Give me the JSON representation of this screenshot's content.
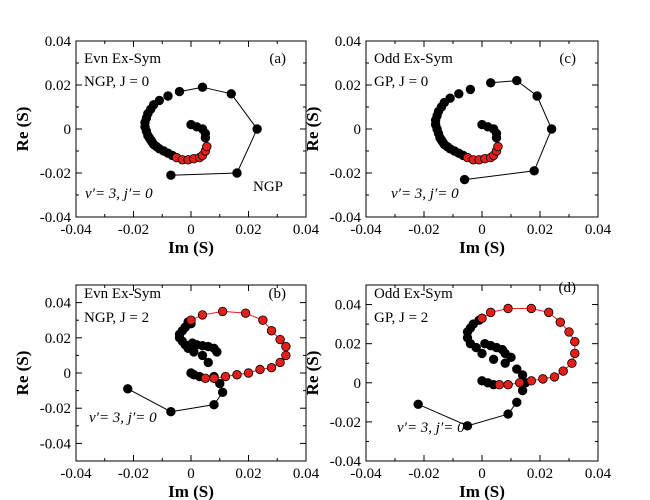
{
  "chart_data": [
    {
      "id": "a",
      "type": "scatter",
      "xlabel": "Im (S)",
      "ylabel": "Re (S)",
      "xlim": [
        -0.04,
        0.04
      ],
      "ylim": [
        -0.04,
        0.04
      ],
      "xticks": [
        -0.04,
        -0.02,
        0,
        0.02,
        0.04
      ],
      "yticks": [
        -0.04,
        -0.02,
        0,
        0.02,
        0.04
      ],
      "xtick_labels": [
        "-0.04",
        "-0.02",
        "0",
        "0.02",
        "0.04"
      ],
      "ytick_labels": [
        "-0.04",
        "-0.02",
        "0",
        "0.02",
        "0.04"
      ],
      "annotations": {
        "line1": "Evn Ex-Sym",
        "line2": "NGP, J = 0",
        "panel_label": "(a)",
        "extra": "NGP",
        "quantum": "v′= 3, j′= 0"
      },
      "series": [
        {
          "name": "black",
          "color": "#000000",
          "points": [
            [
              -0.007,
              -0.021
            ],
            [
              0.016,
              -0.02
            ],
            [
              0.023,
              0.0
            ],
            [
              0.014,
              0.016
            ],
            [
              0.004,
              0.019
            ],
            [
              -0.004,
              0.017
            ],
            [
              -0.008,
              0.015
            ],
            [
              -0.011,
              0.013
            ],
            [
              -0.013,
              0.011
            ],
            [
              -0.014,
              0.009
            ],
            [
              -0.015,
              0.007
            ],
            [
              -0.0155,
              0.005
            ],
            [
              -0.016,
              0.003
            ],
            [
              -0.016,
              0.001
            ],
            [
              -0.0155,
              -0.001
            ],
            [
              -0.015,
              -0.003
            ],
            [
              -0.0145,
              -0.004
            ],
            [
              -0.014,
              -0.005
            ],
            [
              -0.0135,
              -0.006
            ],
            [
              -0.013,
              -0.007
            ],
            [
              -0.012,
              -0.008
            ],
            [
              -0.011,
              -0.009
            ],
            [
              -0.0095,
              -0.01
            ],
            [
              -0.008,
              -0.011
            ],
            [
              -0.0065,
              -0.012
            ],
            [
              0.0,
              0.002
            ],
            [
              0.002,
              0.001
            ],
            [
              0.004,
              0.0
            ],
            [
              0.005,
              -0.002
            ],
            [
              0.005,
              -0.004
            ]
          ]
        },
        {
          "name": "red",
          "color": "#e0211b",
          "points": [
            [
              -0.005,
              -0.013
            ],
            [
              -0.003,
              -0.014
            ],
            [
              -0.001,
              -0.014
            ],
            [
              0.001,
              -0.0135
            ],
            [
              0.003,
              -0.013
            ],
            [
              0.004,
              -0.012
            ],
            [
              0.005,
              -0.01
            ],
            [
              0.0055,
              -0.008
            ]
          ]
        }
      ],
      "connected_points": [
        [
          -0.007,
          -0.021
        ],
        [
          0.016,
          -0.02
        ],
        [
          0.023,
          0.0
        ],
        [
          0.014,
          0.016
        ],
        [
          0.004,
          0.019
        ],
        [
          -0.004,
          0.017
        ]
      ]
    },
    {
      "id": "c",
      "type": "scatter",
      "xlabel": "Im (S)",
      "ylabel": "Re (S)",
      "xlim": [
        -0.04,
        0.04
      ],
      "ylim": [
        -0.04,
        0.04
      ],
      "xticks": [
        -0.04,
        -0.02,
        0,
        0.02,
        0.04
      ],
      "yticks": [
        -0.04,
        -0.02,
        0,
        0.02,
        0.04
      ],
      "xtick_labels": [
        "-0.04",
        "-0.02",
        "0",
        "0.02",
        "0.04"
      ],
      "ytick_labels": [
        "-0.04",
        "-0.02",
        "0",
        "0.02",
        "0.04"
      ],
      "annotations": {
        "line1": "Odd Ex-Sym",
        "line2": "GP, J = 0",
        "panel_label": "(c)",
        "extra": "",
        "quantum": "v′= 3, j′= 0"
      },
      "series": [
        {
          "name": "black",
          "color": "#000000",
          "points": [
            [
              -0.006,
              -0.023
            ],
            [
              0.018,
              -0.019
            ],
            [
              0.024,
              0.0
            ],
            [
              0.019,
              0.015
            ],
            [
              0.012,
              0.022
            ],
            [
              0.003,
              0.021
            ],
            [
              -0.004,
              0.018
            ],
            [
              -0.008,
              0.016
            ],
            [
              -0.011,
              0.014
            ],
            [
              -0.013,
              0.012
            ],
            [
              -0.014,
              0.01
            ],
            [
              -0.015,
              0.008
            ],
            [
              -0.0155,
              0.006
            ],
            [
              -0.016,
              0.004
            ],
            [
              -0.016,
              0.002
            ],
            [
              -0.0155,
              0.0
            ],
            [
              -0.015,
              -0.002
            ],
            [
              -0.0145,
              -0.004
            ],
            [
              -0.014,
              -0.005
            ],
            [
              -0.0135,
              -0.006
            ],
            [
              -0.013,
              -0.007
            ],
            [
              -0.012,
              -0.008
            ],
            [
              -0.011,
              -0.009
            ],
            [
              -0.0095,
              -0.01
            ],
            [
              -0.008,
              -0.011
            ],
            [
              -0.0065,
              -0.012
            ],
            [
              0.0,
              0.002
            ],
            [
              0.002,
              0.001
            ],
            [
              0.004,
              0.0
            ],
            [
              0.005,
              -0.002
            ],
            [
              0.005,
              -0.004
            ]
          ]
        },
        {
          "name": "red",
          "color": "#e0211b",
          "points": [
            [
              -0.005,
              -0.013
            ],
            [
              -0.003,
              -0.014
            ],
            [
              -0.001,
              -0.014
            ],
            [
              0.001,
              -0.0135
            ],
            [
              0.003,
              -0.013
            ],
            [
              0.004,
              -0.012
            ],
            [
              0.005,
              -0.01
            ],
            [
              0.0055,
              -0.008
            ]
          ]
        }
      ],
      "connected_points": [
        [
          -0.006,
          -0.023
        ],
        [
          0.018,
          -0.019
        ],
        [
          0.024,
          0.0
        ],
        [
          0.019,
          0.015
        ],
        [
          0.012,
          0.022
        ],
        [
          0.003,
          0.021
        ]
      ]
    },
    {
      "id": "b",
      "type": "scatter",
      "xlabel": "Im (S)",
      "ylabel": "Re (S)",
      "xlim": [
        -0.04,
        0.04
      ],
      "ylim": [
        -0.05,
        0.05
      ],
      "xticks": [
        -0.04,
        -0.02,
        0,
        0.02,
        0.04
      ],
      "yticks": [
        -0.04,
        -0.02,
        0,
        0.02,
        0.04
      ],
      "xtick_labels": [
        "-0.04",
        "-0.02",
        "0",
        "0.02",
        "0.04"
      ],
      "ytick_labels": [
        "-0.04",
        "-0.02",
        "0",
        "0.02",
        "0.04"
      ],
      "annotations": {
        "line1": "Evn Ex-Sym",
        "line2": "NGP, J = 2",
        "panel_label": "(b)",
        "extra": "",
        "quantum": "v′= 3, j′= 0"
      },
      "series": [
        {
          "name": "black",
          "color": "#000000",
          "points": [
            [
              -0.022,
              -0.009
            ],
            [
              -0.007,
              -0.022
            ],
            [
              0.008,
              -0.018
            ],
            [
              0.011,
              -0.011
            ],
            [
              0.01,
              -0.006
            ],
            [
              0.008,
              -0.002
            ],
            [
              0.006,
              0.006
            ],
            [
              0.004,
              0.01
            ],
            [
              0.001,
              0.012
            ],
            [
              -0.001,
              0.014
            ],
            [
              -0.002,
              0.016
            ],
            [
              -0.003,
              0.018
            ],
            [
              -0.004,
              0.02
            ],
            [
              -0.004,
              0.022
            ],
            [
              -0.003,
              0.024
            ],
            [
              -0.002,
              0.026
            ],
            [
              0.0,
              0.028
            ],
            [
              -0.001,
              0.029
            ],
            [
              0.0005,
              0.017
            ],
            [
              0.002,
              0.016
            ],
            [
              0.004,
              0.0155
            ],
            [
              0.006,
              0.015
            ],
            [
              0.008,
              0.014
            ],
            [
              0.009,
              0.012
            ],
            [
              0.0,
              0.0
            ],
            [
              0.001,
              -0.001
            ],
            [
              0.003,
              -0.002
            ]
          ]
        },
        {
          "name": "red",
          "color": "#e0211b",
          "points": [
            [
              0.005,
              -0.003
            ],
            [
              0.008,
              -0.003
            ],
            [
              0.012,
              -0.002
            ],
            [
              0.016,
              -0.001
            ],
            [
              0.02,
              0.0
            ],
            [
              0.024,
              0.002
            ],
            [
              0.028,
              0.003
            ],
            [
              0.031,
              0.006
            ],
            [
              0.033,
              0.01
            ],
            [
              0.033,
              0.015
            ],
            [
              0.031,
              0.019
            ],
            [
              0.028,
              0.024
            ],
            [
              0.025,
              0.03
            ],
            [
              0.019,
              0.034
            ],
            [
              0.011,
              0.035
            ],
            [
              0.004,
              0.033
            ],
            [
              0.0,
              0.03
            ]
          ]
        }
      ],
      "connected_points": [
        [
          -0.022,
          -0.009
        ],
        [
          -0.007,
          -0.022
        ],
        [
          0.008,
          -0.018
        ],
        [
          0.011,
          -0.011
        ]
      ]
    },
    {
      "id": "d",
      "type": "scatter",
      "xlabel": "Im (S)",
      "ylabel": "Re (S)",
      "xlim": [
        -0.04,
        0.04
      ],
      "ylim": [
        -0.04,
        0.05
      ],
      "xticks": [
        -0.04,
        -0.02,
        0,
        0.02,
        0.04
      ],
      "yticks": [
        -0.04,
        -0.02,
        0,
        0.02,
        0.04
      ],
      "xtick_labels": [
        "-0.04",
        "-0.02",
        "0",
        "0.02",
        "0.04"
      ],
      "ytick_labels": [
        "-0.04",
        "-0.02",
        "0",
        "0.02",
        "0.04"
      ],
      "annotations": {
        "line1": "Odd Ex-Sym",
        "line2": "GP, J = 2",
        "panel_label": "(d)",
        "extra": "",
        "quantum": "v′= 3, j′= 0"
      },
      "series": [
        {
          "name": "black",
          "color": "#000000",
          "points": [
            [
              -0.022,
              -0.011
            ],
            [
              -0.005,
              -0.022
            ],
            [
              0.009,
              -0.016
            ],
            [
              0.012,
              -0.01
            ],
            [
              0.014,
              -0.004
            ],
            [
              0.015,
              0.0
            ],
            [
              0.014,
              0.004
            ],
            [
              0.012,
              0.007
            ],
            [
              0.008,
              0.01
            ],
            [
              0.004,
              0.012
            ],
            [
              0.0,
              0.015
            ],
            [
              -0.002,
              0.018
            ],
            [
              -0.004,
              0.02
            ],
            [
              -0.005,
              0.023
            ],
            [
              -0.005,
              0.026
            ],
            [
              -0.004,
              0.028
            ],
            [
              -0.003,
              0.03
            ],
            [
              -0.001,
              0.032
            ],
            [
              0.001,
              0.02
            ],
            [
              0.003,
              0.019
            ],
            [
              0.005,
              0.018
            ],
            [
              0.007,
              0.017
            ],
            [
              0.008,
              0.015
            ],
            [
              0.01,
              0.013
            ],
            [
              0.0,
              0.001
            ],
            [
              0.002,
              0.0
            ],
            [
              0.004,
              -0.001
            ]
          ]
        },
        {
          "name": "red",
          "color": "#e0211b",
          "points": [
            [
              0.006,
              -0.001
            ],
            [
              0.009,
              -0.001
            ],
            [
              0.013,
              0.0
            ],
            [
              0.017,
              0.001
            ],
            [
              0.021,
              0.002
            ],
            [
              0.025,
              0.003
            ],
            [
              0.028,
              0.006
            ],
            [
              0.031,
              0.01
            ],
            [
              0.032,
              0.015
            ],
            [
              0.032,
              0.021
            ],
            [
              0.03,
              0.026
            ],
            [
              0.027,
              0.031
            ],
            [
              0.023,
              0.036
            ],
            [
              0.017,
              0.038
            ],
            [
              0.009,
              0.038
            ],
            [
              0.003,
              0.036
            ],
            [
              0.0,
              0.033
            ]
          ]
        }
      ],
      "connected_points": [
        [
          -0.022,
          -0.011
        ],
        [
          -0.005,
          -0.022
        ],
        [
          0.009,
          -0.016
        ],
        [
          0.012,
          -0.01
        ]
      ]
    }
  ]
}
